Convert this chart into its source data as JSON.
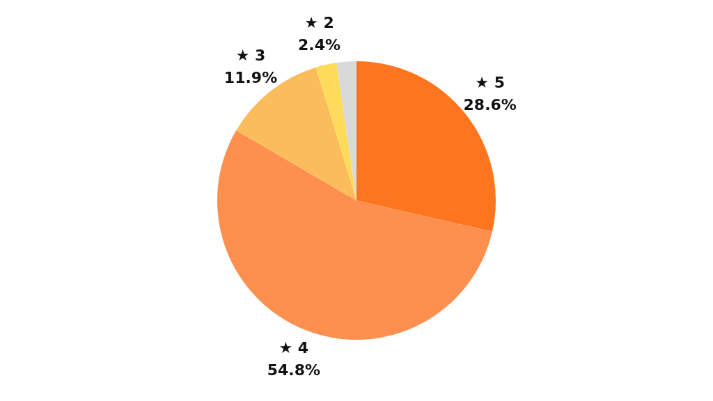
{
  "chart_data": {
    "type": "pie",
    "categories": [
      "★ 5",
      "★ 4",
      "★ 3",
      "★ 2",
      null
    ],
    "values": [
      28.6,
      54.8,
      11.9,
      2.4,
      2.3
    ],
    "value_labels": [
      "28.6%",
      "54.8%",
      "11.9%",
      "2.4%",
      null
    ],
    "colors": [
      "#fd751f",
      "#fd904f",
      "#fbbd5b",
      "#fedb5a",
      "#d9d9d9"
    ],
    "legend": false
  }
}
